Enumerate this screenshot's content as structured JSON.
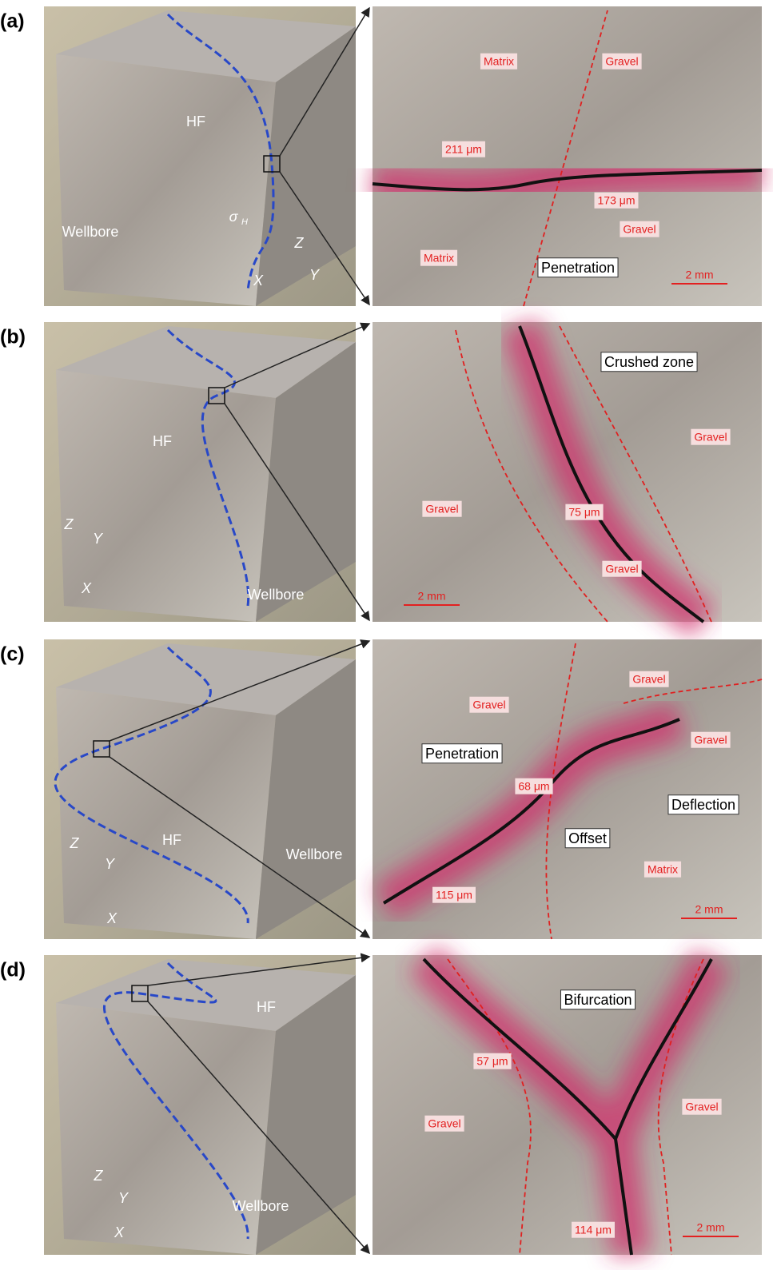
{
  "panels": [
    {
      "label": "(a)",
      "photo": {
        "labels": [
          "HF",
          "Wellbore",
          "σ",
          "H",
          "Z",
          "Y",
          "X"
        ]
      },
      "zoom": {
        "labels": [
          "Matrix",
          "Gravel",
          "211 μm",
          "173 μm",
          "Gravel",
          "Matrix",
          "Penetration",
          "2 mm"
        ]
      }
    },
    {
      "label": "(b)",
      "photo": {
        "labels": [
          "HF",
          "Wellbore",
          "Z",
          "Y",
          "X"
        ]
      },
      "zoom": {
        "labels": [
          "Crushed zone",
          "Gravel",
          "Gravel",
          "75 μm",
          "Gravel",
          "2 mm"
        ]
      }
    },
    {
      "label": "(c)",
      "photo": {
        "labels": [
          "HF",
          "Wellbore",
          "Z",
          "Y",
          "X"
        ]
      },
      "zoom": {
        "labels": [
          "Gravel",
          "Gravel",
          "Gravel",
          "Penetration",
          "68 μm",
          "Deflection",
          "Offset",
          "Matrix",
          "115 μm",
          "2 mm"
        ]
      }
    },
    {
      "label": "(d)",
      "photo": {
        "labels": [
          "HF",
          "Wellbore",
          "Z",
          "Y",
          "X"
        ]
      },
      "zoom": {
        "labels": [
          "Bifurcation",
          "57 μm",
          "Gravel",
          "Gravel",
          "114 μm",
          "2 mm"
        ]
      }
    }
  ]
}
